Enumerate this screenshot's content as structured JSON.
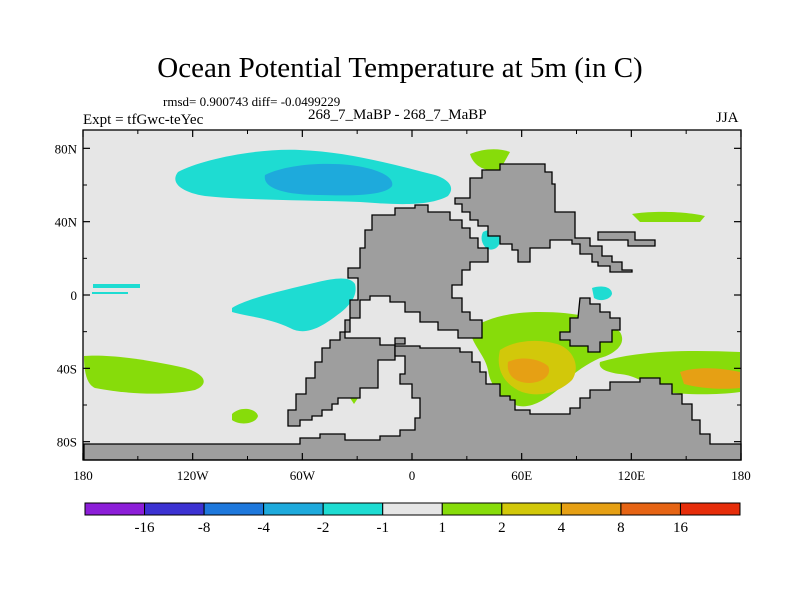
{
  "chart_data": {
    "type": "heatmap",
    "title": "Ocean Potential Temperature at 5m (in C)",
    "stats_text": "rmsd= 0.900743 diff= -0.0499229",
    "rmsd": 0.900743,
    "diff": -0.0499229,
    "left_label": "Expt = tfGwc-teYec",
    "center_label": "268_7_MaBP - 268_7_MaBP",
    "right_label": "JJA",
    "x_ticks": [
      "180",
      "120W",
      "60W",
      "0",
      "60E",
      "120E",
      "180"
    ],
    "y_ticks": [
      "80N",
      "40N",
      "0",
      "40S",
      "80S"
    ],
    "xlim": [
      -180,
      180
    ],
    "ylim": [
      -90,
      90
    ],
    "colorbar": {
      "labels": [
        "-16",
        "-8",
        "-4",
        "-2",
        "-1",
        "1",
        "2",
        "4",
        "8",
        "16"
      ],
      "colors": [
        "#8c1ed8",
        "#3c32d2",
        "#1e78dc",
        "#1eaadc",
        "#1edcd2",
        "#e6e6e6",
        "#87dc0a",
        "#d2c80a",
        "#e6a014",
        "#e66414",
        "#e62d0a"
      ]
    },
    "land_color": "#9e9e9e",
    "anomaly_regions": [
      {
        "name": "north-pacific-cool",
        "level": "-1 to -2",
        "color": "#1edcd2"
      },
      {
        "name": "north-pacific-core",
        "level": "-2 to -4",
        "color": "#1eaadc"
      },
      {
        "name": "tropical-east-pacific-cool",
        "level": "-1 to -2",
        "color": "#1edcd2"
      },
      {
        "name": "indian-ocean-warm",
        "level": "1 to 2",
        "color": "#87dc0a"
      },
      {
        "name": "indian-ocean-warmer",
        "level": "2 to 4",
        "color": "#d2c80a"
      },
      {
        "name": "indian-ocean-core",
        "level": "4 to 8",
        "color": "#e6a014"
      },
      {
        "name": "south-pacific-warm",
        "level": "1 to 2",
        "color": "#87dc0a"
      },
      {
        "name": "southeast-warm-core",
        "level": "4 to 8",
        "color": "#e6a014"
      }
    ]
  }
}
